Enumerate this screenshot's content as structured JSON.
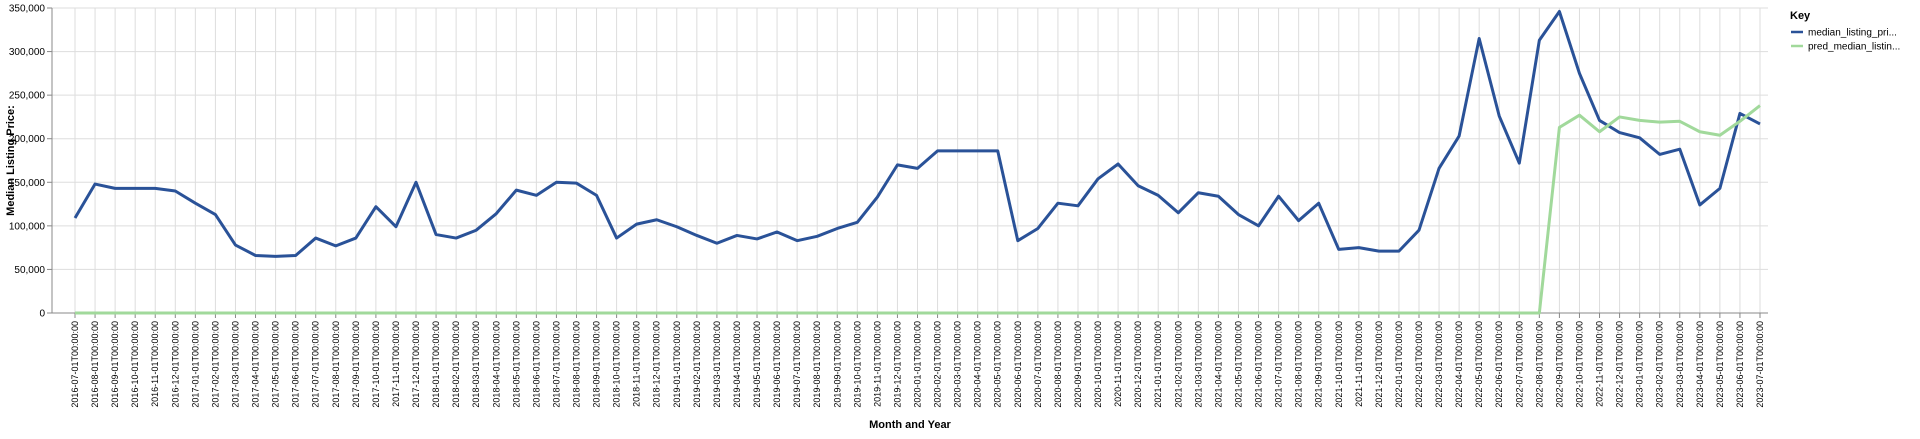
{
  "chart_data": {
    "type": "line",
    "xlabel": "Month and Year",
    "ylabel": "Median Listing Price:",
    "ylim": [
      0,
      350000
    ],
    "yticks": [
      "0",
      "50,000",
      "100,000",
      "150,000",
      "200,000",
      "250,000",
      "300,000",
      "350,000"
    ],
    "ytick_values": [
      0,
      50000,
      100000,
      150000,
      200000,
      250000,
      300000,
      350000
    ],
    "grid": true,
    "legend_position": "top-right",
    "legend_title": "Key",
    "categories": [
      "2016-07-01T00:00:00",
      "2016-08-01T00:00:00",
      "2016-09-01T00:00:00",
      "2016-10-01T00:00:00",
      "2016-11-01T00:00:00",
      "2016-12-01T00:00:00",
      "2017-01-01T00:00:00",
      "2017-02-01T00:00:00",
      "2017-03-01T00:00:00",
      "2017-04-01T00:00:00",
      "2017-05-01T00:00:00",
      "2017-06-01T00:00:00",
      "2017-07-01T00:00:00",
      "2017-08-01T00:00:00",
      "2017-09-01T00:00:00",
      "2017-10-01T00:00:00",
      "2017-11-01T00:00:00",
      "2017-12-01T00:00:00",
      "2018-01-01T00:00:00",
      "2018-02-01T00:00:00",
      "2018-03-01T00:00:00",
      "2018-04-01T00:00:00",
      "2018-05-01T00:00:00",
      "2018-06-01T00:00:00",
      "2018-07-01T00:00:00",
      "2018-08-01T00:00:00",
      "2018-09-01T00:00:00",
      "2018-10-01T00:00:00",
      "2018-11-01T00:00:00",
      "2018-12-01T00:00:00",
      "2019-01-01T00:00:00",
      "2019-02-01T00:00:00",
      "2019-03-01T00:00:00",
      "2019-04-01T00:00:00",
      "2019-05-01T00:00:00",
      "2019-06-01T00:00:00",
      "2019-07-01T00:00:00",
      "2019-08-01T00:00:00",
      "2019-09-01T00:00:00",
      "2019-10-01T00:00:00",
      "2019-11-01T00:00:00",
      "2019-12-01T00:00:00",
      "2020-01-01T00:00:00",
      "2020-02-01T00:00:00",
      "2020-03-01T00:00:00",
      "2020-04-01T00:00:00",
      "2020-05-01T00:00:00",
      "2020-06-01T00:00:00",
      "2020-07-01T00:00:00",
      "2020-08-01T00:00:00",
      "2020-09-01T00:00:00",
      "2020-10-01T00:00:00",
      "2020-11-01T00:00:00",
      "2020-12-01T00:00:00",
      "2021-01-01T00:00:00",
      "2021-02-01T00:00:00",
      "2021-03-01T00:00:00",
      "2021-04-01T00:00:00",
      "2021-05-01T00:00:00",
      "2021-06-01T00:00:00",
      "2021-07-01T00:00:00",
      "2021-08-01T00:00:00",
      "2021-09-01T00:00:00",
      "2021-10-01T00:00:00",
      "2021-11-01T00:00:00",
      "2021-12-01T00:00:00",
      "2022-01-01T00:00:00",
      "2022-02-01T00:00:00",
      "2022-03-01T00:00:00",
      "2022-04-01T00:00:00",
      "2022-05-01T00:00:00",
      "2022-06-01T00:00:00",
      "2022-07-01T00:00:00",
      "2022-08-01T00:00:00",
      "2022-09-01T00:00:00",
      "2022-10-01T00:00:00",
      "2022-11-01T00:00:00",
      "2022-12-01T00:00:00",
      "2023-01-01T00:00:00",
      "2023-02-01T00:00:00",
      "2023-03-01T00:00:00",
      "2023-04-01T00:00:00",
      "2023-05-01T00:00:00",
      "2023-06-01T00:00:00",
      "2023-07-01T00:00:00"
    ],
    "series": [
      {
        "name": "median_listing_pri...",
        "color": "#2a5298",
        "values": [
          109000,
          148000,
          143000,
          143000,
          143000,
          140000,
          126000,
          113000,
          78000,
          66000,
          65000,
          66000,
          86000,
          77000,
          86000,
          122000,
          99000,
          150000,
          90000,
          86000,
          95000,
          114000,
          141000,
          135000,
          150000,
          149000,
          135000,
          86000,
          102000,
          107000,
          99000,
          89000,
          80000,
          89000,
          85000,
          93000,
          83000,
          88000,
          97000,
          104000,
          133000,
          170000,
          166000,
          186000,
          186000,
          186000,
          186000,
          83000,
          97000,
          126000,
          123000,
          154000,
          171000,
          146000,
          135000,
          115000,
          138000,
          134000,
          113000,
          100000,
          134000,
          106000,
          126000,
          73000,
          75000,
          71000,
          71000,
          95000,
          166000,
          203000,
          315000,
          226000,
          172000,
          313000,
          346000,
          275000,
          221000,
          207000,
          201000,
          182000,
          188000,
          124000,
          143000,
          229000,
          217000
        ]
      },
      {
        "name": "pred_median_listin...",
        "color": "#a1d99b",
        "values": [
          0,
          0,
          0,
          0,
          0,
          0,
          0,
          0,
          0,
          0,
          0,
          0,
          0,
          0,
          0,
          0,
          0,
          0,
          0,
          0,
          0,
          0,
          0,
          0,
          0,
          0,
          0,
          0,
          0,
          0,
          0,
          0,
          0,
          0,
          0,
          0,
          0,
          0,
          0,
          0,
          0,
          0,
          0,
          0,
          0,
          0,
          0,
          0,
          0,
          0,
          0,
          0,
          0,
          0,
          0,
          0,
          0,
          0,
          0,
          0,
          0,
          0,
          0,
          0,
          0,
          0,
          0,
          0,
          0,
          0,
          0,
          0,
          0,
          0,
          213000,
          227000,
          208000,
          225000,
          221000,
          219000,
          220000,
          208000,
          204000,
          220000,
          238000
        ]
      }
    ]
  }
}
